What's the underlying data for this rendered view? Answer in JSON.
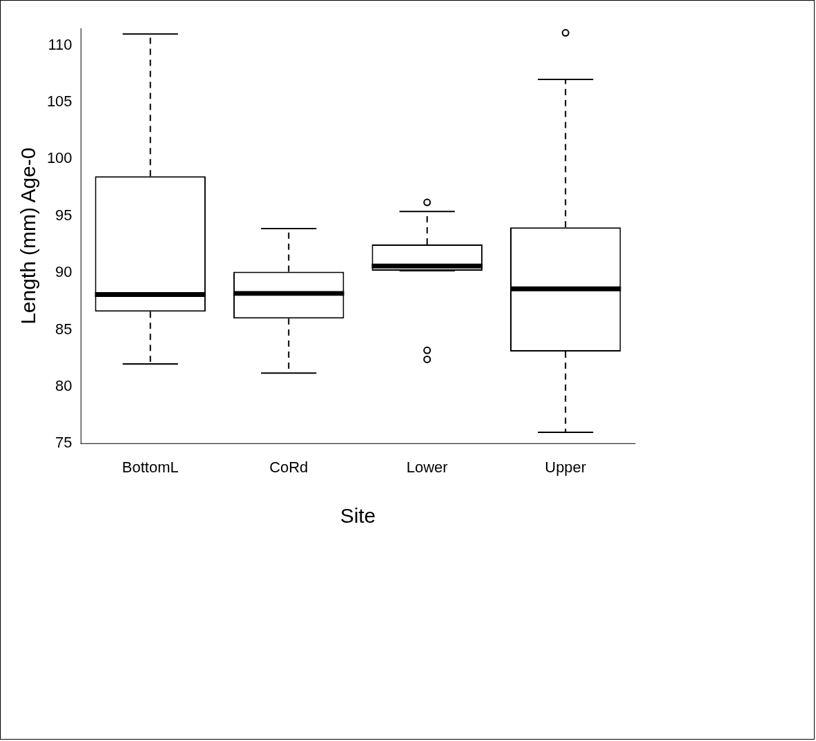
{
  "chart_data": {
    "type": "box",
    "xlabel": "Site",
    "ylabel": "Length (mm) Age-0",
    "categories": [
      "BottomL",
      "CoRd",
      "Lower",
      "Upper"
    ],
    "boxes": [
      {
        "low": 82.0,
        "q1": 86.6,
        "median": 88.1,
        "q3": 98.5,
        "high": 111.0
      },
      {
        "low": 81.2,
        "q1": 86.0,
        "median": 88.2,
        "q3": 90.1,
        "high": 93.9
      },
      {
        "low": 90.2,
        "q1": 90.2,
        "median": 90.6,
        "q3": 92.5,
        "high": 95.4,
        "outliers": [
          96.2,
          83.2,
          82.4
        ]
      },
      {
        "low": 76.0,
        "q1": 83.1,
        "median": 88.6,
        "q3": 94.0,
        "high": 107.0,
        "outliers": [
          111.1
        ]
      }
    ],
    "color": "#000000",
    "ylim": [
      75,
      111.5
    ],
    "yticks": [
      75,
      80,
      85,
      90,
      95,
      100,
      105,
      110
    ],
    "grid": false,
    "legend": false
  }
}
